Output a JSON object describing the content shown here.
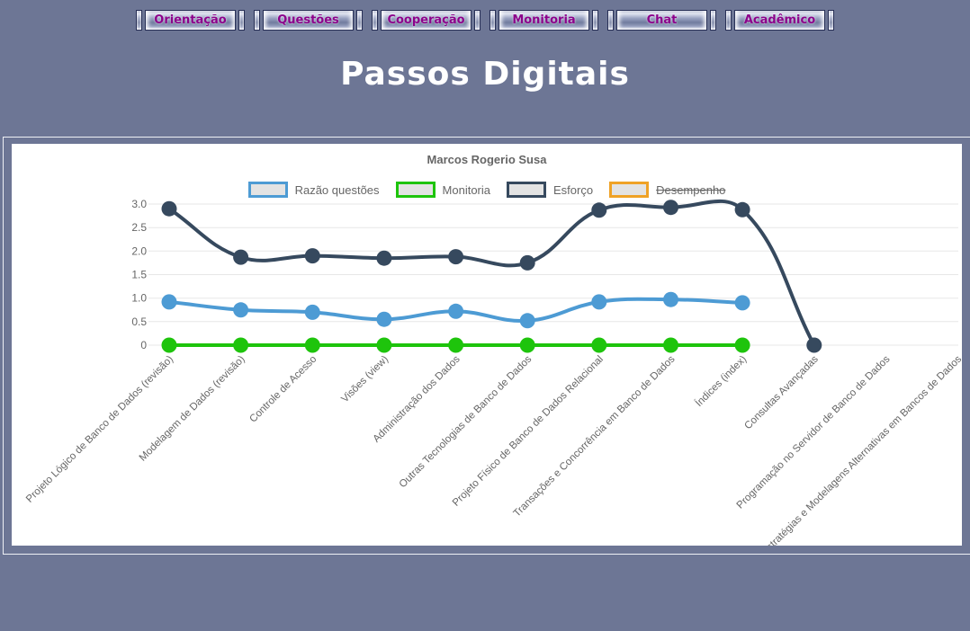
{
  "nav": {
    "items": [
      {
        "label": "Orientação"
      },
      {
        "label": "Questões"
      },
      {
        "label": "Cooperação"
      },
      {
        "label": "Monitoria"
      },
      {
        "label": "Chat"
      },
      {
        "label": "Acadêmico"
      }
    ],
    "text_color": "#8b008b"
  },
  "page_title": "Passos Digitais",
  "chart_data": {
    "type": "line",
    "title": "Marcos Rogerio Susa",
    "legend_position": "top",
    "grid": "horizontal-only",
    "ylim": [
      0,
      3.0
    ],
    "yticks": [
      0,
      0.5,
      1.0,
      1.5,
      2.0,
      2.5,
      3.0
    ],
    "categories": [
      "Projeto Lógico de Banco de Dados (revisão)",
      "Modelagem de Dados (revisão)",
      "Controle de Acesso",
      "Visões (view)",
      "Administração dos Dados",
      "Outras Tecnologias de Banco de Dados",
      "Projeto Físico de Banco de Dados Relacional",
      "Transações e Concorrência em Banco de Dados",
      "Índices (index)",
      "Consultas Avançadas",
      "Programação no Servidor de Banco de Dados",
      "Estratégias e Modelagens Alternativas em Bancos de Dados"
    ],
    "series": [
      {
        "name": "Razão questões",
        "color": "#4d9bd4",
        "hidden": false,
        "values": [
          0.92,
          0.75,
          0.7,
          0.55,
          0.72,
          0.52,
          0.92,
          0.97,
          0.9
        ]
      },
      {
        "name": "Monitoria",
        "color": "#1ec40c",
        "hidden": false,
        "values": [
          0,
          0,
          0,
          0,
          0,
          0,
          0,
          0,
          0
        ]
      },
      {
        "name": "Esforço",
        "color": "#36495e",
        "hidden": false,
        "values": [
          2.9,
          1.87,
          1.9,
          1.85,
          1.88,
          1.75,
          2.87,
          2.93,
          2.88,
          0
        ]
      },
      {
        "name": "Desempenho",
        "color": "#efa226",
        "hidden": true,
        "values": []
      }
    ]
  },
  "colors": {
    "page_background": "#6d7695",
    "panel_background": "#ffffff",
    "gridline": "#e7e7e7",
    "chart_text": "#666666",
    "title_text": "#ffffff"
  }
}
